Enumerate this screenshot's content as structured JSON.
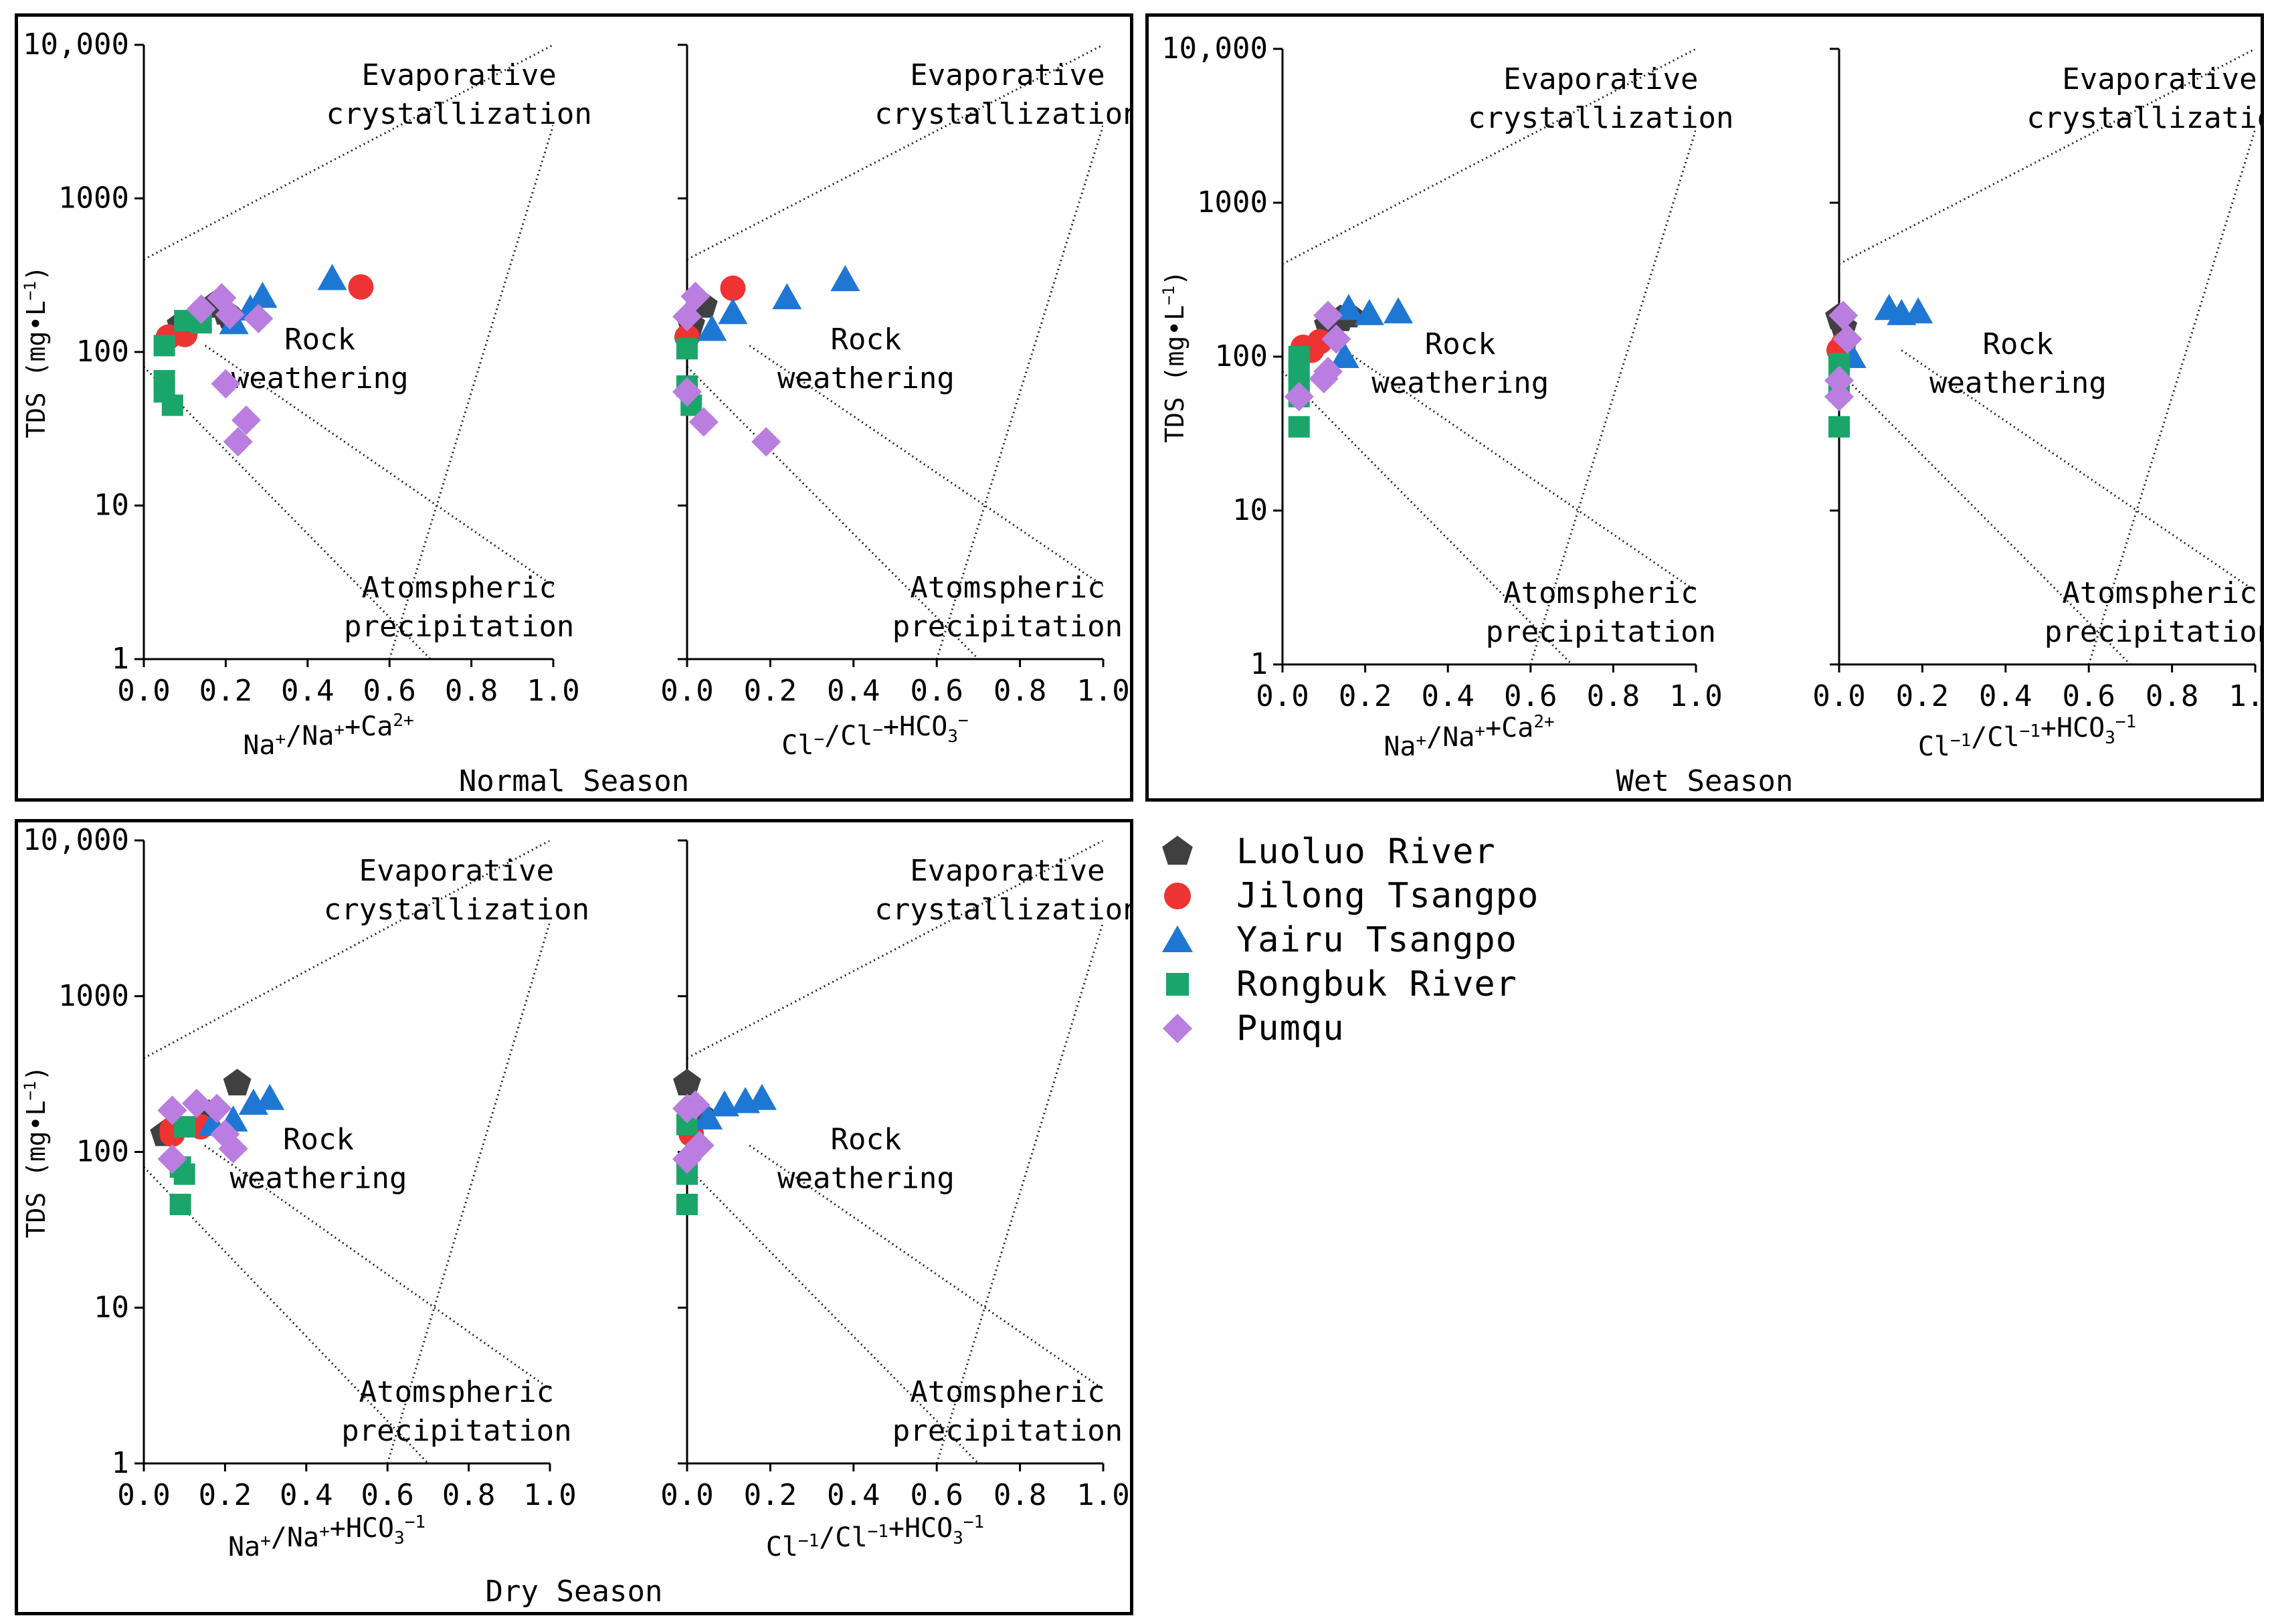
{
  "colors": {
    "Luoluo River": "#404040",
    "Jilong Tsangpo": "#ee3333",
    "Yairu Tsangpo": "#1f77d4",
    "Rongbuk River": "#1aa66b",
    "Pumqu": "#b97ee0"
  },
  "legend": [
    {
      "name": "Luoluo River",
      "marker": "pentagon"
    },
    {
      "name": "Jilong Tsangpo",
      "marker": "circle"
    },
    {
      "name": "Yairu Tsangpo",
      "marker": "triangle"
    },
    {
      "name": "Rongbuk River",
      "marker": "square"
    },
    {
      "name": "Pumqu",
      "marker": "diamond"
    }
  ],
  "chart_data": [
    {
      "type": "scatter",
      "panel": "normal",
      "season": "Normal Season",
      "subplot": "left",
      "xlabel": "Na+/Na++Ca2+",
      "ylabel": "TDS (mg•L-1)",
      "xlim": [
        0,
        1
      ],
      "ylim": [
        1,
        10000
      ],
      "yscale": "log",
      "xticks": [
        "0.0",
        "0.2",
        "0.4",
        "0.6",
        "0.8",
        "1.0"
      ],
      "yticks": [
        "1",
        "10",
        "100",
        "1000",
        "10,000"
      ],
      "regions": [
        "Evaporative crystallization",
        "Rock weathering",
        "Atomspheric precipitation"
      ],
      "series": [
        {
          "name": "Luoluo River",
          "points": [
            [
              0.09,
              150
            ],
            [
              0.17,
              200
            ],
            [
              0.2,
              180
            ],
            [
              0.21,
              170
            ]
          ]
        },
        {
          "name": "Jilong Tsangpo",
          "points": [
            [
              0.06,
              125
            ],
            [
              0.1,
              130
            ],
            [
              0.53,
              265
            ]
          ]
        },
        {
          "name": "Yairu Tsangpo",
          "points": [
            [
              0.46,
              300
            ],
            [
              0.29,
              230
            ],
            [
              0.26,
              190
            ],
            [
              0.22,
              155
            ]
          ]
        },
        {
          "name": "Rongbuk River",
          "points": [
            [
              0.05,
              110
            ],
            [
              0.05,
              65
            ],
            [
              0.05,
              55
            ],
            [
              0.07,
              45
            ],
            [
              0.1,
              160
            ],
            [
              0.14,
              155
            ]
          ]
        },
        {
          "name": "Pumqu",
          "points": [
            [
              0.14,
              190
            ],
            [
              0.19,
              225
            ],
            [
              0.21,
              175
            ],
            [
              0.28,
              165
            ],
            [
              0.2,
              62
            ],
            [
              0.25,
              36
            ],
            [
              0.23,
              26
            ]
          ]
        }
      ]
    },
    {
      "type": "scatter",
      "panel": "normal",
      "season": "Normal Season",
      "subplot": "right",
      "xlabel": "Cl-/Cl-+HCO3-",
      "xlim": [
        0,
        1
      ],
      "ylim": [
        1,
        10000
      ],
      "yscale": "log",
      "xticks": [
        "0.0",
        "0.2",
        "0.4",
        "0.6",
        "0.8",
        "1.0"
      ],
      "regions": [
        "Evaporative crystallization",
        "Rock weathering",
        "Atomspheric precipitation"
      ],
      "series": [
        {
          "name": "Luoluo River",
          "points": [
            [
              0.01,
              150
            ],
            [
              0.04,
              200
            ]
          ]
        },
        {
          "name": "Jilong Tsangpo",
          "points": [
            [
              0.0,
              125
            ],
            [
              0.11,
              260
            ]
          ]
        },
        {
          "name": "Yairu Tsangpo",
          "points": [
            [
              0.38,
              295
            ],
            [
              0.24,
              225
            ],
            [
              0.11,
              180
            ],
            [
              0.06,
              140
            ]
          ]
        },
        {
          "name": "Rongbuk River",
          "points": [
            [
              0.0,
              105
            ],
            [
              0.0,
              60
            ],
            [
              0.01,
              45
            ]
          ]
        },
        {
          "name": "Pumqu",
          "points": [
            [
              0.02,
              230
            ],
            [
              0.0,
              170
            ],
            [
              0.04,
              35
            ],
            [
              0.19,
              26
            ],
            [
              0.0,
              55
            ]
          ]
        }
      ]
    },
    {
      "type": "scatter",
      "panel": "wet",
      "season": "Wet Season",
      "subplot": "left",
      "xlabel": "Na+/Na++Ca2+",
      "ylabel": "TDS (mg•L-1)",
      "xlim": [
        0,
        1
      ],
      "ylim": [
        1,
        10000
      ],
      "yscale": "log",
      "xticks": [
        "0.0",
        "0.2",
        "0.4",
        "0.6",
        "0.8",
        "1.0"
      ],
      "yticks": [
        "1",
        "10",
        "100",
        "1000",
        "10,000"
      ],
      "regions": [
        "Evaporative crystallization",
        "Rock weathering",
        "Atomspheric precipitation"
      ],
      "series": [
        {
          "name": "Luoluo River",
          "points": [
            [
              0.11,
              160
            ],
            [
              0.14,
              175
            ],
            [
              0.16,
              185
            ]
          ]
        },
        {
          "name": "Jilong Tsangpo",
          "points": [
            [
              0.05,
              115
            ],
            [
              0.07,
              110
            ],
            [
              0.09,
              125
            ]
          ]
        },
        {
          "name": "Yairu Tsangpo",
          "points": [
            [
              0.16,
              205
            ],
            [
              0.21,
              190
            ],
            [
              0.28,
              195
            ],
            [
              0.15,
              100
            ]
          ]
        },
        {
          "name": "Rongbuk River",
          "points": [
            [
              0.04,
              100
            ],
            [
              0.04,
              80
            ],
            [
              0.04,
              65
            ],
            [
              0.04,
              55
            ],
            [
              0.04,
              35
            ]
          ]
        },
        {
          "name": "Pumqu",
          "points": [
            [
              0.11,
              185
            ],
            [
              0.13,
              130
            ],
            [
              0.11,
              80
            ],
            [
              0.1,
              72
            ],
            [
              0.04,
              55
            ]
          ]
        }
      ]
    },
    {
      "type": "scatter",
      "panel": "wet",
      "season": "Wet Season",
      "subplot": "right",
      "xlabel": "Cl-1/Cl-1+HCO3-1",
      "xlim": [
        0,
        1
      ],
      "ylim": [
        1,
        10000
      ],
      "yscale": "log",
      "xticks": [
        "0.0",
        "0.2",
        "0.4",
        "0.6",
        "0.8",
        "1.0"
      ],
      "regions": [
        "Evaporative crystallization",
        "Rock weathering",
        "Atomspheric precipitation"
      ],
      "series": [
        {
          "name": "Luoluo River",
          "points": [
            [
              0.0,
              180
            ],
            [
              0.01,
              155
            ]
          ]
        },
        {
          "name": "Jilong Tsangpo",
          "points": [
            [
              0.0,
              110
            ],
            [
              0.01,
              120
            ]
          ]
        },
        {
          "name": "Yairu Tsangpo",
          "points": [
            [
              0.12,
              205
            ],
            [
              0.15,
              190
            ],
            [
              0.19,
              195
            ],
            [
              0.03,
              100
            ]
          ]
        },
        {
          "name": "Rongbuk River",
          "points": [
            [
              0.0,
              90
            ],
            [
              0.0,
              70
            ],
            [
              0.0,
              60
            ],
            [
              0.0,
              35
            ]
          ]
        },
        {
          "name": "Pumqu",
          "points": [
            [
              0.01,
              185
            ],
            [
              0.02,
              130
            ],
            [
              0.0,
              70
            ],
            [
              0.0,
              55
            ]
          ]
        }
      ]
    },
    {
      "type": "scatter",
      "panel": "dry",
      "season": "Dry Season",
      "subplot": "left",
      "xlabel": "Na+/Na++HCO3-1",
      "ylabel": "TDS (mg•L-1)",
      "xlim": [
        0,
        1
      ],
      "ylim": [
        1,
        10000
      ],
      "yscale": "log",
      "xticks": [
        "0.0",
        "0.2",
        "0.4",
        "0.6",
        "0.8",
        "1.0"
      ],
      "yticks": [
        "1",
        "10",
        "100",
        "1000",
        "10,000"
      ],
      "regions": [
        "Evaporative crystallization",
        "Rock weathering",
        "Atomspheric precipitation"
      ],
      "series": [
        {
          "name": "Luoluo River",
          "points": [
            [
              0.23,
              275
            ],
            [
              0.16,
              175
            ],
            [
              0.05,
              130
            ]
          ]
        },
        {
          "name": "Jilong Tsangpo",
          "points": [
            [
              0.07,
              130
            ],
            [
              0.14,
              145
            ],
            [
              0.07,
              140
            ]
          ]
        },
        {
          "name": "Yairu Tsangpo",
          "points": [
            [
              0.31,
              220
            ],
            [
              0.27,
              205
            ],
            [
              0.22,
              160
            ],
            [
              0.17,
              150
            ]
          ]
        },
        {
          "name": "Rongbuk River",
          "points": [
            [
              0.1,
              145
            ],
            [
              0.09,
              80
            ],
            [
              0.1,
              72
            ],
            [
              0.09,
              46
            ]
          ]
        },
        {
          "name": "Pumqu",
          "points": [
            [
              0.07,
              185
            ],
            [
              0.13,
              205
            ],
            [
              0.18,
              190
            ],
            [
              0.2,
              130
            ],
            [
              0.22,
              105
            ],
            [
              0.07,
              90
            ]
          ]
        }
      ]
    },
    {
      "type": "scatter",
      "panel": "dry",
      "season": "Dry Season",
      "subplot": "right",
      "xlabel": "Cl-1/Cl-1+HCO3-1",
      "xlim": [
        0,
        1
      ],
      "ylim": [
        1,
        10000
      ],
      "yscale": "log",
      "xticks": [
        "0.0",
        "0.2",
        "0.4",
        "0.6",
        "0.8",
        "1.0"
      ],
      "regions": [
        "Evaporative crystallization",
        "Rock weathering",
        "Atomspheric precipitation"
      ],
      "series": [
        {
          "name": "Luoluo River",
          "points": [
            [
              0.0,
              275
            ],
            [
              0.03,
              175
            ]
          ]
        },
        {
          "name": "Jilong Tsangpo",
          "points": [
            [
              0.01,
              130
            ]
          ]
        },
        {
          "name": "Yairu Tsangpo",
          "points": [
            [
              0.18,
              220
            ],
            [
              0.14,
              210
            ],
            [
              0.09,
              200
            ],
            [
              0.05,
              165
            ]
          ]
        },
        {
          "name": "Rongbuk River",
          "points": [
            [
              0.0,
              150
            ],
            [
              0.0,
              80
            ],
            [
              0.0,
              72
            ],
            [
              0.0,
              46
            ]
          ]
        },
        {
          "name": "Pumqu",
          "points": [
            [
              0.02,
              200
            ],
            [
              0.0,
              190
            ],
            [
              0.03,
              110
            ],
            [
              0.0,
              90
            ]
          ]
        }
      ]
    }
  ]
}
